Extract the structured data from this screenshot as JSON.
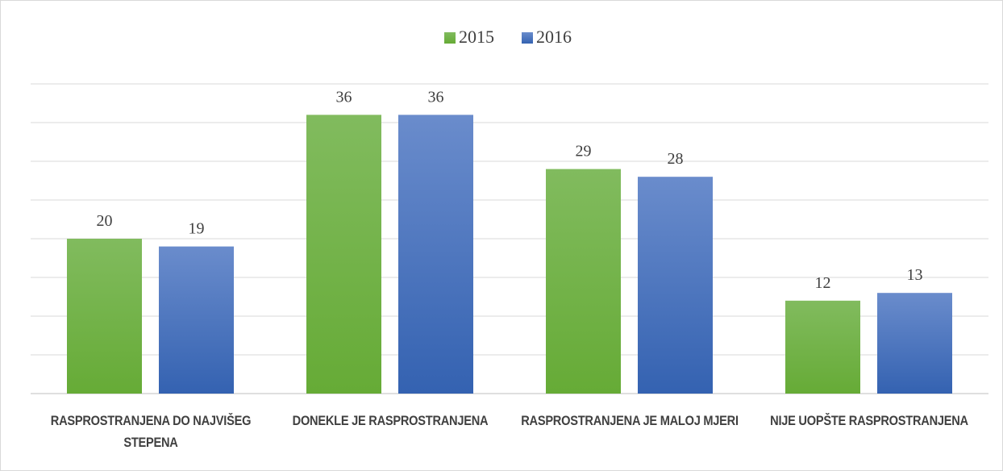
{
  "chart_data": {
    "type": "bar",
    "categories": [
      "RASPROSTRANJENA DO NAJVIŠEG STEPENA",
      "DONEKLE JE RASPROSTRANJENA",
      "RASPROSTRANJENA JE MALOJ MJERI",
      "NIJE UOPŠTE RASPROSTRANJENA"
    ],
    "series": [
      {
        "name": "2015",
        "color": "#70ad47",
        "values": [
          20,
          36,
          29,
          12
        ]
      },
      {
        "name": "2016",
        "color": "#4472c4",
        "values": [
          19,
          36,
          28,
          13
        ]
      }
    ],
    "ylim": [
      0,
      40
    ],
    "yticks": [
      0,
      5,
      10,
      15,
      20,
      25,
      30,
      35,
      40
    ],
    "grid": true,
    "legend": "top"
  }
}
